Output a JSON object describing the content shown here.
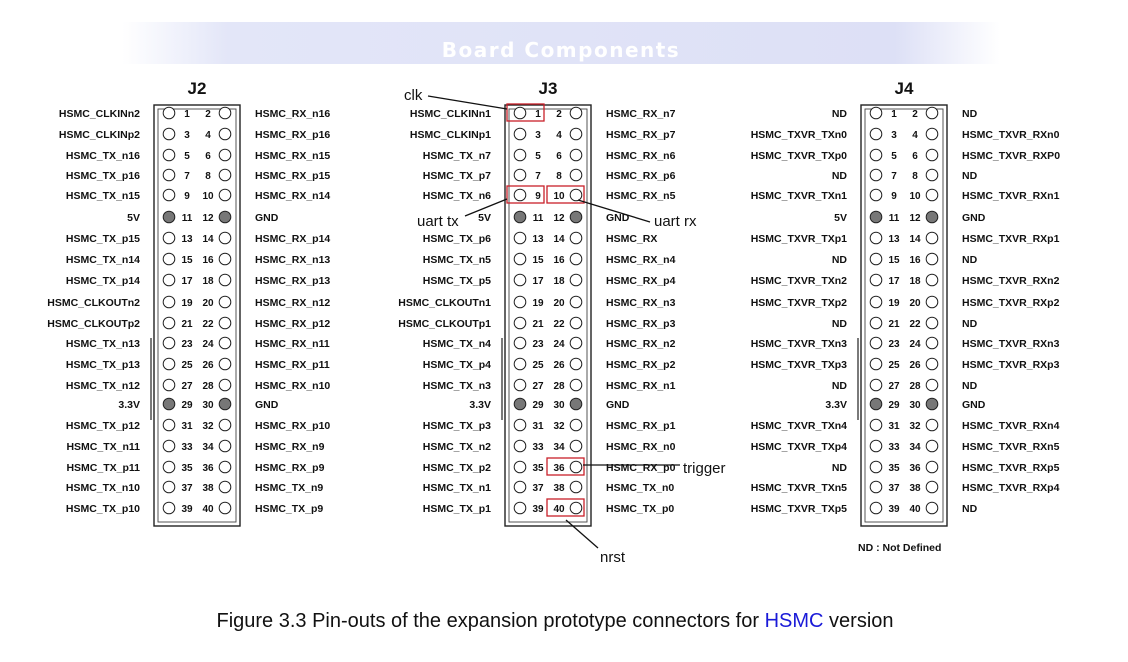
{
  "banner": {
    "title": "Board Components"
  },
  "colors": {
    "banner_fill": "#dde0f6",
    "highlight_box": "#c8202a",
    "ground_pin": "#777777",
    "caption_link": "#1a1ad8"
  },
  "connectors": [
    {
      "name": "J2",
      "left_labels": [
        "HSMC_CLKINn2",
        "HSMC_CLKINp2",
        "HSMC_TX_n16",
        "HSMC_TX_p16",
        "HSMC_TX_n15",
        "5V",
        "HSMC_TX_p15",
        "HSMC_TX_n14",
        "HSMC_TX_p14",
        "HSMC_CLKOUTn2",
        "HSMC_CLKOUTp2",
        "HSMC_TX_n13",
        "HSMC_TX_p13",
        "HSMC_TX_n12",
        "3.3V",
        "HSMC_TX_p12",
        "HSMC_TX_n11",
        "HSMC_TX_p11",
        "HSMC_TX_n10",
        "HSMC_TX_p10"
      ],
      "right_labels": [
        "HSMC_RX_n16",
        "HSMC_RX_p16",
        "HSMC_RX_n15",
        "HSMC_RX_p15",
        "HSMC_RX_n14",
        "GND",
        "HSMC_RX_p14",
        "HSMC_RX_n13",
        "HSMC_RX_p13",
        "HSMC_RX_n12",
        "HSMC_RX_p12",
        "HSMC_RX_n11",
        "HSMC_RX_p11",
        "HSMC_RX_n10",
        "GND",
        "HSMC_RX_p10",
        "HSMC_RX_n9",
        "HSMC_RX_p9",
        "HSMC_TX_n9",
        "HSMC_TX_p9"
      ],
      "pin_numbers_odd": [
        "1",
        "3",
        "5",
        "7",
        "9",
        "11",
        "13",
        "15",
        "17",
        "19",
        "21",
        "23",
        "25",
        "27",
        "29",
        "31",
        "33",
        "35",
        "37",
        "39"
      ],
      "pin_numbers_even": [
        "2",
        "4",
        "6",
        "8",
        "10",
        "12",
        "14",
        "16",
        "18",
        "20",
        "22",
        "24",
        "26",
        "28",
        "30",
        "32",
        "34",
        "36",
        "38",
        "40"
      ]
    },
    {
      "name": "J3",
      "left_labels": [
        "HSMC_CLKINn1",
        "HSMC_CLKINp1",
        "HSMC_TX_n7",
        "HSMC_TX_p7",
        "HSMC_TX_n6",
        "5V",
        "HSMC_TX_p6",
        "HSMC_TX_n5",
        "HSMC_TX_p5",
        "HSMC_CLKOUTn1",
        "HSMC_CLKOUTp1",
        "HSMC_TX_n4",
        "HSMC_TX_p4",
        "HSMC_TX_n3",
        "3.3V",
        "HSMC_TX_p3",
        "HSMC_TX_n2",
        "HSMC_TX_p2",
        "HSMC_TX_n1",
        "HSMC_TX_p1"
      ],
      "right_labels": [
        "HSMC_RX_n7",
        "HSMC_RX_p7",
        "HSMC_RX_n6",
        "HSMC_RX_p6",
        "HSMC_RX_n5",
        "GND",
        "HSMC_RX",
        "HSMC_RX_n4",
        "HSMC_RX_p4",
        "HSMC_RX_n3",
        "HSMC_RX_p3",
        "HSMC_RX_n2",
        "HSMC_RX_p2",
        "HSMC_RX_n1",
        "GND",
        "HSMC_RX_p1",
        "HSMC_RX_n0",
        "HSMC_RX_p0",
        "HSMC_TX_n0",
        "HSMC_TX_p0"
      ],
      "pin_numbers_odd": [
        "1",
        "3",
        "5",
        "7",
        "9",
        "11",
        "13",
        "15",
        "17",
        "19",
        "21",
        "23",
        "25",
        "27",
        "29",
        "31",
        "33",
        "35",
        "37",
        "39"
      ],
      "pin_numbers_even": [
        "2",
        "4",
        "6",
        "8",
        "10",
        "12",
        "14",
        "16",
        "18",
        "20",
        "22",
        "24",
        "26",
        "28",
        "30",
        "32",
        "34",
        "36",
        "38",
        "40"
      ]
    },
    {
      "name": "J4",
      "left_labels": [
        "ND",
        "HSMC_TXVR_TXn0",
        "HSMC_TXVR_TXp0",
        "ND",
        "HSMC_TXVR_TXn1",
        "5V",
        "HSMC_TXVR_TXp1",
        "ND",
        "HSMC_TXVR_TXn2",
        "HSMC_TXVR_TXp2",
        "ND",
        "HSMC_TXVR_TXn3",
        "HSMC_TXVR_TXp3",
        "ND",
        "3.3V",
        "HSMC_TXVR_TXn4",
        "HSMC_TXVR_TXp4",
        "ND",
        "HSMC_TXVR_TXn5",
        "HSMC_TXVR_TXp5"
      ],
      "right_labels": [
        "ND",
        "HSMC_TXVR_RXn0",
        "HSMC_TXVR_RXP0",
        "ND",
        "HSMC_TXVR_RXn1",
        "GND",
        "HSMC_TXVR_RXp1",
        "ND",
        "HSMC_TXVR_RXn2",
        "HSMC_TXVR_RXp2",
        "ND",
        "HSMC_TXVR_RXn3",
        "HSMC_TXVR_RXp3",
        "ND",
        "GND",
        "HSMC_TXVR_RXn4",
        "HSMC_TXVR_RXn5",
        "HSMC_TXVR_RXp5",
        "HSMC_TXVR_RXp4",
        "ND"
      ],
      "pin_numbers_odd": [
        "1",
        "3",
        "5",
        "7",
        "9",
        "11",
        "13",
        "15",
        "17",
        "19",
        "21",
        "23",
        "25",
        "27",
        "29",
        "31",
        "33",
        "35",
        "37",
        "39"
      ],
      "pin_numbers_even": [
        "2",
        "4",
        "6",
        "8",
        "10",
        "12",
        "14",
        "16",
        "18",
        "20",
        "22",
        "24",
        "26",
        "28",
        "30",
        "32",
        "34",
        "36",
        "38",
        "40"
      ]
    }
  ],
  "annotations": {
    "clk": "clk",
    "uart_tx": "uart tx",
    "uart_rx": "uart rx",
    "trigger": "trigger",
    "nrst": "nrst"
  },
  "legend_note": "ND : Not Defined",
  "caption": {
    "prefix": "Figure 3.3 Pin-outs of the expansion prototype connectors for ",
    "highlight": "HSMC",
    "suffix": " version"
  }
}
